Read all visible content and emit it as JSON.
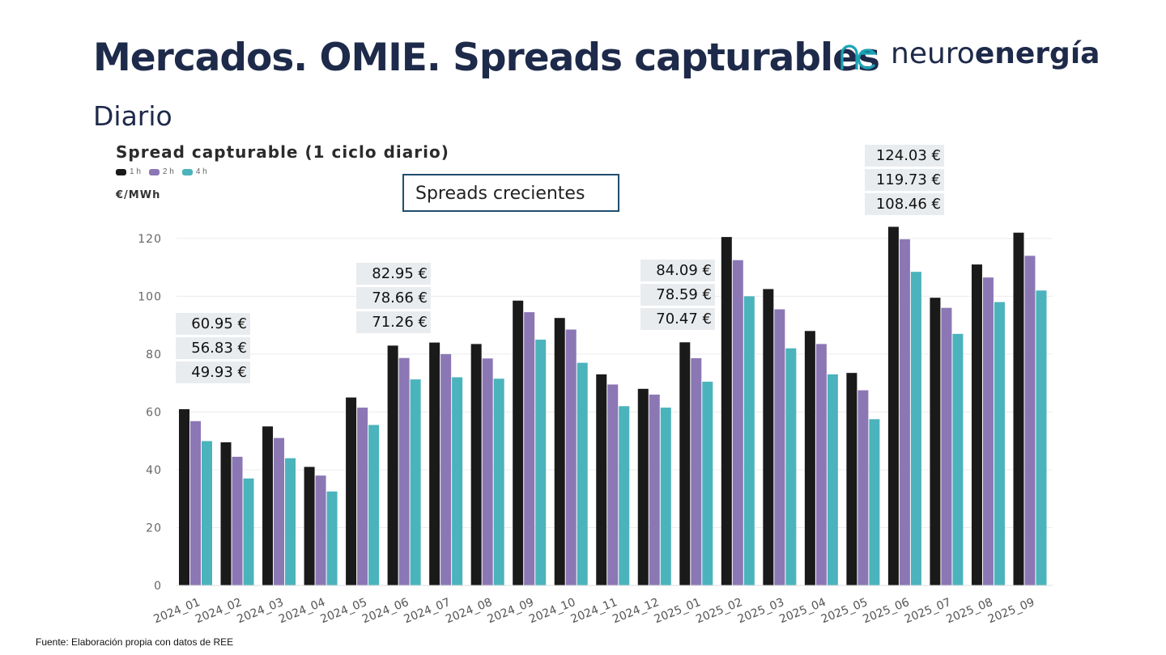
{
  "header": {
    "title": "Mercados. OMIE. Spreads capturables",
    "subtitle": "Diario",
    "logo_prefix": "neuro",
    "logo_bold": "energía",
    "logo_color": "#1aa3b5"
  },
  "callout": {
    "text": "Spreads crecientes"
  },
  "value_boxes": [
    {
      "values": [
        "60.95 €",
        "56.83 €",
        "49.93 €"
      ]
    },
    {
      "values": [
        "82.95 €",
        "78.66 €",
        "71.26 €"
      ]
    },
    {
      "values": [
        "84.09 €",
        "78.59 €",
        "70.47 €"
      ]
    },
    {
      "values": [
        "124.03 €",
        "119.73 €",
        "108.46 €"
      ]
    }
  ],
  "footer": {
    "source": "Fuente: Elaboración propia con datos de REE"
  },
  "chart_data": {
    "type": "bar",
    "title": "Spread capturable (1 ciclo diario)",
    "ylabel": "€/MWh",
    "ylim": [
      0,
      125
    ],
    "yticks": [
      0,
      20,
      40,
      60,
      80,
      100,
      120
    ],
    "grid": true,
    "legend_position": "top-left",
    "categories": [
      "2024_01",
      "2024_02",
      "2024_03",
      "2024_04",
      "2024_05",
      "2024_06",
      "2024_07",
      "2024_08",
      "2024_09",
      "2024_10",
      "2024_11",
      "2024_12",
      "2025_01",
      "2025_02",
      "2025_03",
      "2025_04",
      "2025_05",
      "2025_06",
      "2025_07",
      "2025_08",
      "2025_09"
    ],
    "series": [
      {
        "name": "1 h",
        "color": "#1a1a1a",
        "values": [
          60.95,
          49.5,
          55,
          41,
          65,
          82.95,
          84,
          83.5,
          98.5,
          92.5,
          73,
          68,
          84.09,
          120.5,
          102.5,
          88,
          73.5,
          124.03,
          99.5,
          111,
          122
        ]
      },
      {
        "name": "2 h",
        "color": "#8c77b5",
        "values": [
          56.83,
          44.5,
          51,
          38,
          61.5,
          78.66,
          80,
          78.5,
          94.5,
          88.5,
          69.5,
          66,
          78.59,
          112.5,
          95.5,
          83.5,
          67.5,
          119.73,
          96,
          106.5,
          114
        ]
      },
      {
        "name": "4 h",
        "color": "#4bb3bb",
        "values": [
          49.93,
          37,
          44,
          32.5,
          55.5,
          71.26,
          72,
          71.5,
          85,
          77,
          62,
          61.5,
          70.47,
          100,
          82,
          73,
          57.5,
          108.46,
          87,
          98,
          102
        ]
      }
    ]
  }
}
